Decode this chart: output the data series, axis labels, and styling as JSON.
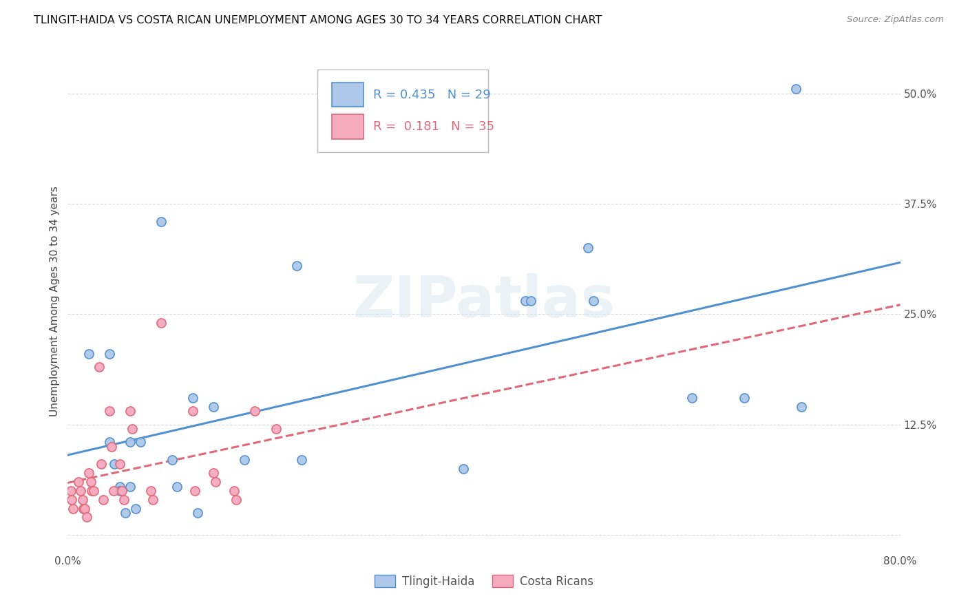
{
  "title": "TLINGIT-HAIDA VS COSTA RICAN UNEMPLOYMENT AMONG AGES 30 TO 34 YEARS CORRELATION CHART",
  "source": "Source: ZipAtlas.com",
  "ylabel": "Unemployment Among Ages 30 to 34 years",
  "xlim": [
    0.0,
    0.8
  ],
  "ylim": [
    -0.02,
    0.55
  ],
  "xtick_positions": [
    0.0,
    0.2,
    0.4,
    0.6,
    0.8
  ],
  "xticklabels": [
    "0.0%",
    "",
    "",
    "",
    "80.0%"
  ],
  "ytick_positions": [
    0.0,
    0.125,
    0.25,
    0.375,
    0.5
  ],
  "ytick_labels_right": [
    "",
    "12.5%",
    "25.0%",
    "37.5%",
    "50.0%"
  ],
  "tlingit_R": 0.435,
  "tlingit_N": 29,
  "costa_R": 0.181,
  "costa_N": 35,
  "tlingit_color": "#adc8e8",
  "costa_color": "#f5aabe",
  "tlingit_line_color": "#5090d0",
  "costa_line_color": "#e06878",
  "legend_label_tlingit": "Tlingit-Haida",
  "legend_label_costa": "Costa Ricans",
  "tlingit_x": [
    0.02,
    0.04,
    0.04,
    0.045,
    0.05,
    0.05,
    0.055,
    0.06,
    0.06,
    0.065,
    0.07,
    0.09,
    0.1,
    0.105,
    0.12,
    0.125,
    0.14,
    0.17,
    0.22,
    0.225,
    0.38,
    0.44,
    0.445,
    0.5,
    0.505,
    0.6,
    0.65,
    0.7,
    0.705
  ],
  "tlingit_y": [
    0.205,
    0.205,
    0.105,
    0.08,
    0.055,
    0.05,
    0.025,
    0.105,
    0.055,
    0.03,
    0.105,
    0.355,
    0.085,
    0.055,
    0.155,
    0.025,
    0.145,
    0.085,
    0.305,
    0.085,
    0.075,
    0.265,
    0.265,
    0.325,
    0.265,
    0.155,
    0.155,
    0.505,
    0.145
  ],
  "costa_x": [
    0.003,
    0.004,
    0.005,
    0.01,
    0.012,
    0.014,
    0.015,
    0.016,
    0.018,
    0.02,
    0.022,
    0.023,
    0.025,
    0.03,
    0.032,
    0.034,
    0.04,
    0.042,
    0.044,
    0.05,
    0.052,
    0.054,
    0.06,
    0.062,
    0.08,
    0.082,
    0.09,
    0.12,
    0.122,
    0.14,
    0.142,
    0.16,
    0.162,
    0.18,
    0.2
  ],
  "costa_y": [
    0.05,
    0.04,
    0.03,
    0.06,
    0.05,
    0.04,
    0.03,
    0.03,
    0.02,
    0.07,
    0.06,
    0.05,
    0.05,
    0.19,
    0.08,
    0.04,
    0.14,
    0.1,
    0.05,
    0.08,
    0.05,
    0.04,
    0.14,
    0.12,
    0.05,
    0.04,
    0.24,
    0.14,
    0.05,
    0.07,
    0.06,
    0.05,
    0.04,
    0.14,
    0.12
  ],
  "watermark": "ZIPatlas",
  "background_color": "#ffffff",
  "grid_color": "#d8d8d8"
}
